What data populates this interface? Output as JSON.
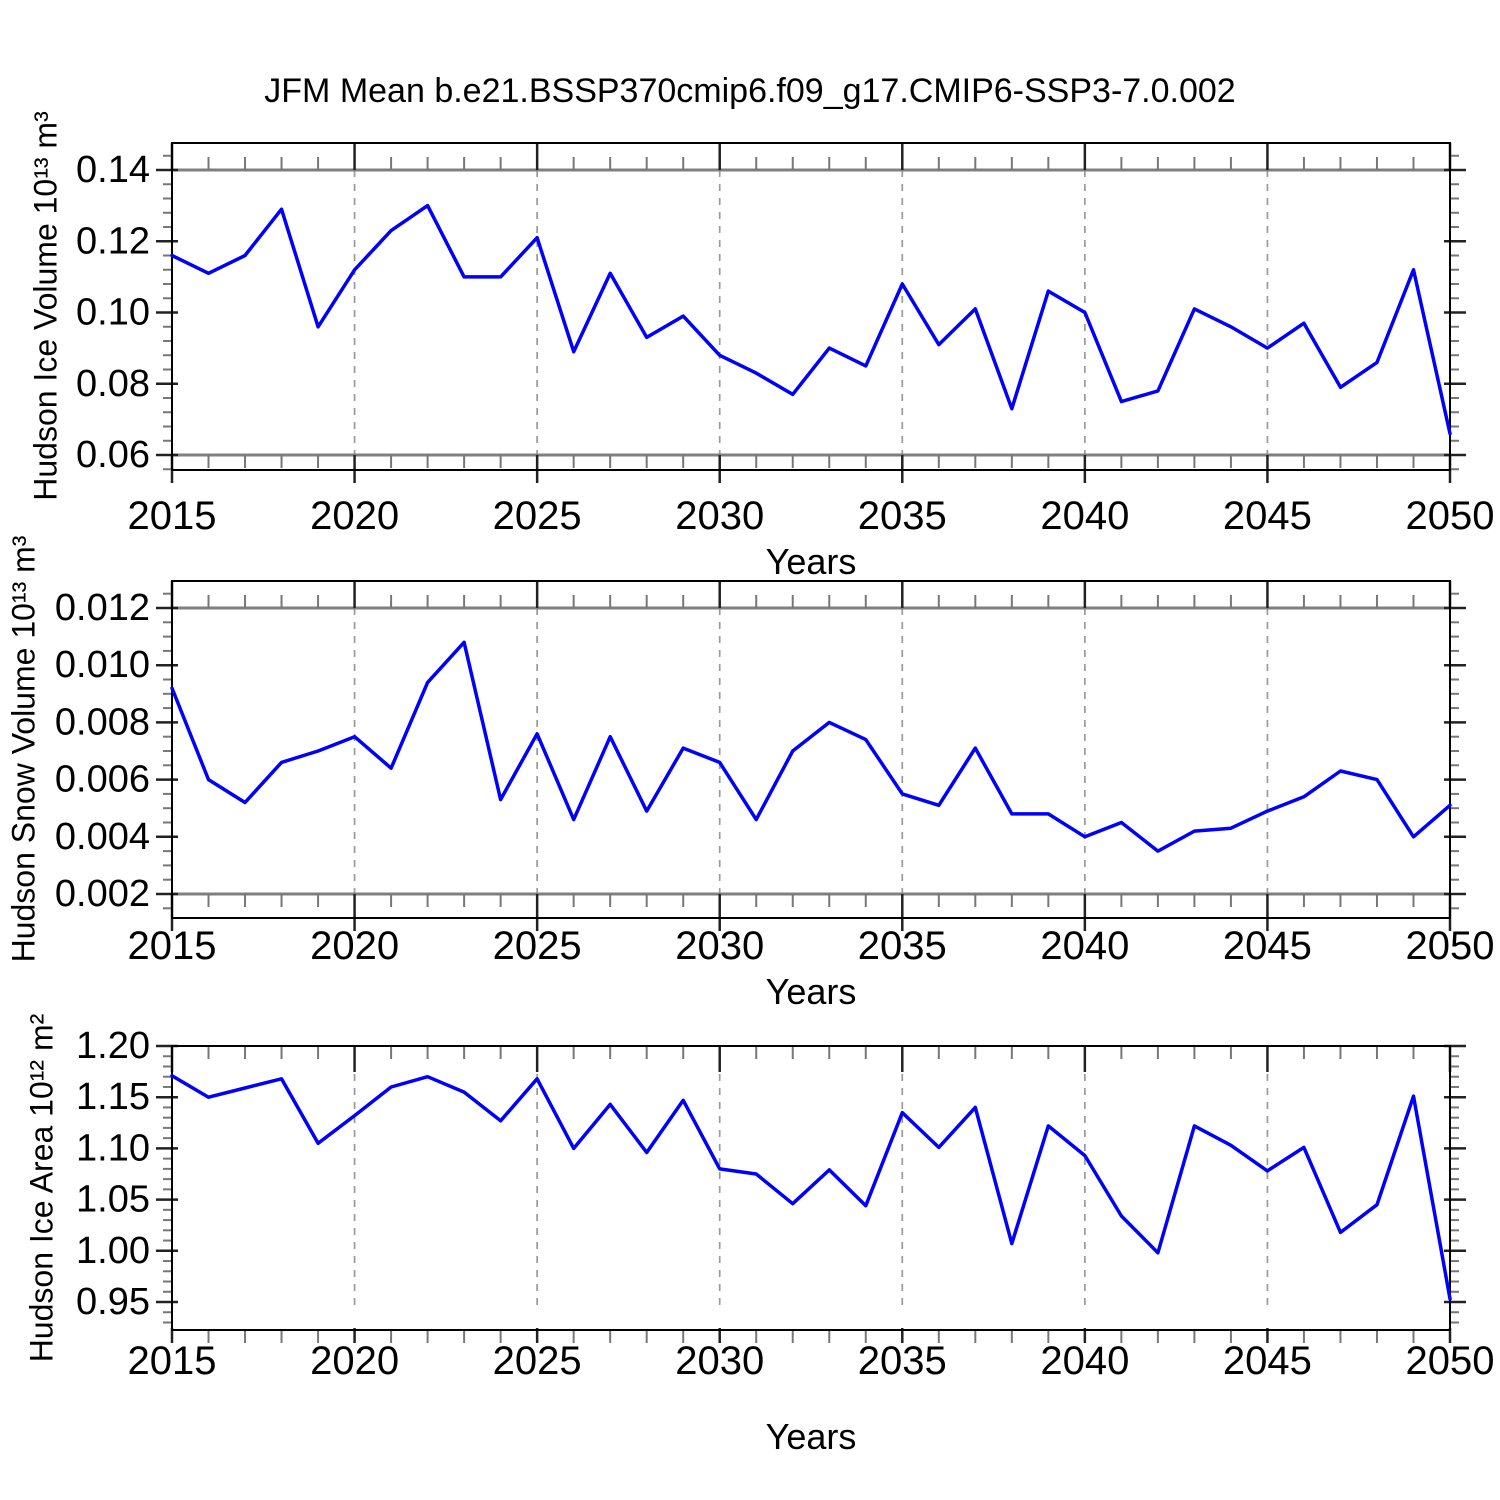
{
  "title": "JFM Mean b.e21.BSSP370cmip6.f09_g17.CMIP6-SSP3-7.0.002",
  "xlabel": "Years",
  "colors": {
    "line": "#0000ff",
    "frame": "#000000",
    "edge_line": "#7f7f7f",
    "grid": "#9a9a9a",
    "major_tick": "#222222",
    "minor_tick": "#777777"
  },
  "chart_data": [
    {
      "type": "line",
      "ylabel": "Hudson Ice Volume 10¹³ m³",
      "xlabel": "Years",
      "x": [
        2015,
        2016,
        2017,
        2018,
        2019,
        2020,
        2021,
        2022,
        2023,
        2024,
        2025,
        2026,
        2027,
        2028,
        2029,
        2030,
        2031,
        2032,
        2033,
        2034,
        2035,
        2036,
        2037,
        2038,
        2039,
        2040,
        2041,
        2042,
        2043,
        2044,
        2045,
        2046,
        2047,
        2048,
        2049,
        2050
      ],
      "values": [
        0.116,
        0.111,
        0.116,
        0.129,
        0.096,
        0.112,
        0.123,
        0.13,
        0.11,
        0.11,
        0.121,
        0.089,
        0.111,
        0.093,
        0.099,
        0.088,
        0.083,
        0.077,
        0.09,
        0.085,
        0.108,
        0.091,
        0.101,
        0.073,
        0.106,
        0.1,
        0.075,
        0.078,
        0.101,
        0.096,
        0.09,
        0.097,
        0.079,
        0.086,
        0.112,
        0.066
      ],
      "ylim": [
        0.0558,
        0.1476
      ],
      "yticks": [
        0.06,
        0.08,
        0.1,
        0.12,
        0.14
      ],
      "ytick_labels": [
        "0.06",
        "0.08",
        "0.10",
        "0.12",
        "0.14"
      ],
      "y_minor_step": 0.004,
      "xticks": [
        2015,
        2020,
        2025,
        2030,
        2035,
        2040,
        2045,
        2050
      ],
      "xtick_labels": [
        "2015",
        "2020",
        "2025",
        "2030",
        "2035",
        "2040",
        "2045",
        "2050"
      ],
      "x_minor_step": 1,
      "grid_years": [
        2020,
        2025,
        2030,
        2035,
        2040,
        2045
      ],
      "grid_style": "dashed",
      "legend": "none"
    },
    {
      "type": "line",
      "ylabel": "Hudson Snow Volume 10¹³ m³",
      "xlabel": "Years",
      "x": [
        2015,
        2016,
        2017,
        2018,
        2019,
        2020,
        2021,
        2022,
        2023,
        2024,
        2025,
        2026,
        2027,
        2028,
        2029,
        2030,
        2031,
        2032,
        2033,
        2034,
        2035,
        2036,
        2037,
        2038,
        2039,
        2040,
        2041,
        2042,
        2043,
        2044,
        2045,
        2046,
        2047,
        2048,
        2049,
        2050
      ],
      "values": [
        0.0092,
        0.006,
        0.0052,
        0.0066,
        0.007,
        0.0075,
        0.0064,
        0.0094,
        0.0108,
        0.0053,
        0.0076,
        0.0046,
        0.0075,
        0.0049,
        0.0071,
        0.0066,
        0.0046,
        0.007,
        0.008,
        0.0074,
        0.0055,
        0.0051,
        0.0071,
        0.0048,
        0.0048,
        0.004,
        0.0045,
        0.0035,
        0.0042,
        0.0043,
        0.0049,
        0.0054,
        0.0063,
        0.006,
        0.004,
        0.0051
      ],
      "ylim": [
        0.00116,
        0.01294
      ],
      "yticks": [
        0.002,
        0.004,
        0.006,
        0.008,
        0.01,
        0.012
      ],
      "ytick_labels": [
        "0.002",
        "0.004",
        "0.006",
        "0.008",
        "0.010",
        "0.012"
      ],
      "y_minor_step": 0.0005,
      "xticks": [
        2015,
        2020,
        2025,
        2030,
        2035,
        2040,
        2045,
        2050
      ],
      "xtick_labels": [
        "2015",
        "2020",
        "2025",
        "2030",
        "2035",
        "2040",
        "2045",
        "2050"
      ],
      "x_minor_step": 1,
      "grid_years": [
        2020,
        2025,
        2030,
        2035,
        2040,
        2045
      ],
      "grid_style": "dashed",
      "legend": "none"
    },
    {
      "type": "line",
      "ylabel": "Hudson Ice Area 10¹² m²",
      "xlabel": "Years",
      "x": [
        2015,
        2016,
        2017,
        2018,
        2019,
        2020,
        2021,
        2022,
        2023,
        2024,
        2025,
        2026,
        2027,
        2028,
        2029,
        2030,
        2031,
        2032,
        2033,
        2034,
        2035,
        2036,
        2037,
        2038,
        2039,
        2040,
        2041,
        2042,
        2043,
        2044,
        2045,
        2046,
        2047,
        2048,
        2049,
        2050
      ],
      "values": [
        1.171,
        1.15,
        1.159,
        1.168,
        1.105,
        1.132,
        1.16,
        1.17,
        1.155,
        1.127,
        1.168,
        1.1,
        1.143,
        1.096,
        1.147,
        1.08,
        1.075,
        1.046,
        1.079,
        1.044,
        1.135,
        1.101,
        1.14,
        1.007,
        1.122,
        1.093,
        1.034,
        0.998,
        1.122,
        1.103,
        1.078,
        1.101,
        1.018,
        1.045,
        1.151,
        0.953
      ],
      "ylim": [
        0.9227,
        1.2
      ],
      "yticks": [
        0.95,
        1.0,
        1.05,
        1.1,
        1.15,
        1.2
      ],
      "ytick_labels": [
        "0.95",
        "1.00",
        "1.05",
        "1.10",
        "1.15",
        "1.20"
      ],
      "y_minor_step": 0.01,
      "xticks": [
        2015,
        2020,
        2025,
        2030,
        2035,
        2040,
        2045,
        2050
      ],
      "xtick_labels": [
        "2015",
        "2020",
        "2025",
        "2030",
        "2035",
        "2040",
        "2045",
        "2050"
      ],
      "x_minor_step": 1,
      "grid_years": [
        2020,
        2025,
        2030,
        2035,
        2040,
        2045
      ],
      "grid_style": "dashed",
      "legend": "none"
    }
  ]
}
